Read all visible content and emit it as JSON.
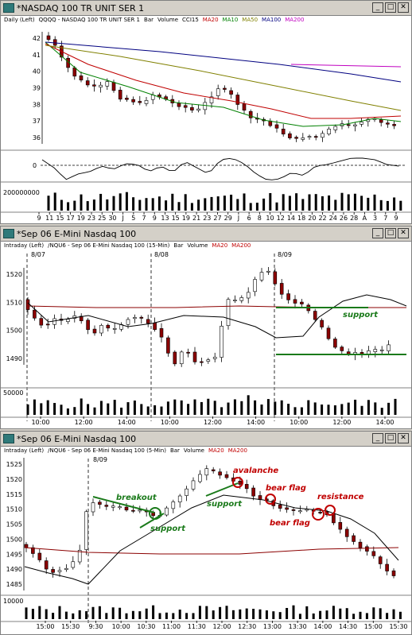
{
  "windows": [
    {
      "title": "*NASDAQ 100 TR UNIT SER 1",
      "header": {
        "period": "Daily  (Left)",
        "symbol": "QQQQ - NASDAQ 100 TR UNIT SER 1",
        "bar": "Bar",
        "volume": "Volume",
        "ind1": "CCI15",
        "ma1": "MA20",
        "ma2": "MA10",
        "ma3": "MA50",
        "ma4": "MA100",
        "ma5": "MA200"
      },
      "y_ticks": [
        "42",
        "41",
        "40",
        "39",
        "38",
        "37",
        "36"
      ],
      "cci_zero": "0",
      "volume_label": "200000000",
      "x_ticks": [
        "9",
        "11",
        "15",
        "17",
        "19",
        "23",
        "25",
        "30",
        "J",
        "5",
        "7",
        "9",
        "13",
        "15",
        "19",
        "21",
        "23",
        "27",
        "29",
        "J",
        "6",
        "8",
        "10",
        "12",
        "14",
        "18",
        "20",
        "22",
        "24",
        "26",
        "28",
        "A",
        "3",
        "7",
        "9"
      ]
    },
    {
      "title": "*Sep 06  E-Mini Nasdaq 100",
      "header": {
        "period": "Intraday  (Left)",
        "symbol": "/NQU6 - Sep 06  E-Mini Nasdaq 100 (15-Min)",
        "bar": "Bar",
        "volume": "Volume",
        "ma1": "MA20",
        "ma2": "MA200"
      },
      "date_marks": [
        "8/07",
        "8/08",
        "8/09"
      ],
      "y_ticks": [
        "1520",
        "1510",
        "1500",
        "1490"
      ],
      "volume_label": "50000",
      "x_ticks": [
        "10:00",
        "12:00",
        "14:00",
        "10:00",
        "12:00",
        "14:00",
        "10:00",
        "12:00",
        "14:00"
      ],
      "annotations": {
        "support": "support"
      }
    },
    {
      "title": "*Sep 06  E-Mini Nasdaq 100",
      "header": {
        "period": "Intraday  (Left)",
        "symbol": "/NQU6 - Sep 06  E-Mini Nasdaq 100 (5-Min)",
        "bar": "Bar",
        "volume": "Volume",
        "ma1": "MA20",
        "ma2": "MA200"
      },
      "date_marks": [
        "8/09"
      ],
      "y_ticks": [
        "1525",
        "1520",
        "1515",
        "1510",
        "1505",
        "1500",
        "1495",
        "1490",
        "1485"
      ],
      "volume_label": "10000",
      "x_ticks": [
        "15:00",
        "15:30",
        "9:30",
        "10:00",
        "10:30",
        "11:00",
        "11:30",
        "12:00",
        "12:30",
        "13:00",
        "13:30",
        "14:00",
        "14:30",
        "15:00",
        "15:30"
      ],
      "annotations": {
        "breakout": "breakout",
        "support1": "support",
        "support2": "support",
        "avalanche": "avalanche",
        "bear_flag1": "bear flag",
        "bear_flag2": "bear flag",
        "resistance": "resistance"
      }
    }
  ],
  "colors": {
    "ma20": "#c00000",
    "ma10": "#008000",
    "ma50": "#808000",
    "ma100": "#000080",
    "ma200": "#c000c0",
    "green_annot": "#1a7a1a",
    "red_annot": "#c00000",
    "titlebar": "#d4d0c8"
  }
}
